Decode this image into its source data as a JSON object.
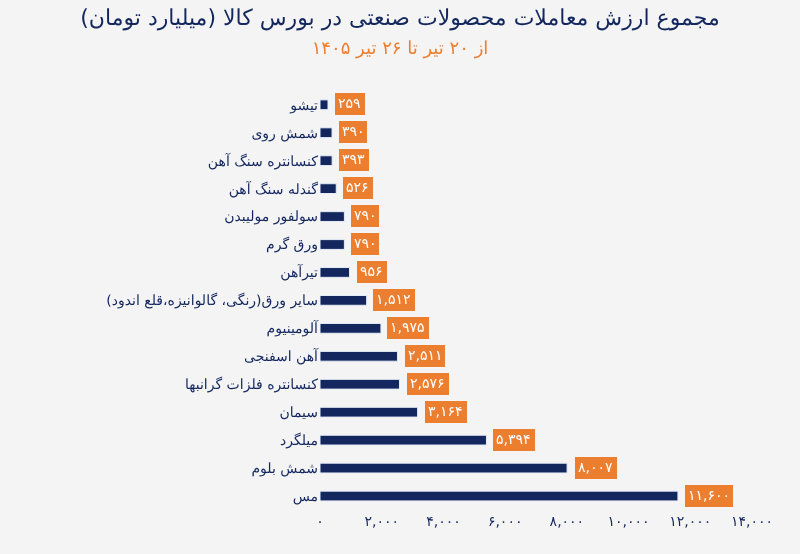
{
  "chart_data": {
    "type": "bar",
    "orientation": "horizontal",
    "title": "مجموع ارزش معاملات محصولات صنعتی در بورس کالا (میلیارد تومان)",
    "subtitle": "از ۲۰ تیر تا ۲۶ تیر ۱۴۰۵",
    "categories": [
      "تیشو",
      "شمش روی",
      "کنسانتره سنگ آهن",
      "گندله سنگ آهن",
      "سولفور مولیبدن",
      "ورق گرم",
      "تیرآهن",
      "سایر ورق(رنگی، گالوانیزه،قلع اندود)",
      "آلومینیوم",
      "آهن اسفنجی",
      "کنسانتره فلزات گرانبها",
      "سیمان",
      "میلگرد",
      "شمش بلوم",
      "مس"
    ],
    "values": [
      259,
      390,
      393,
      526,
      790,
      790,
      956,
      1512,
      1975,
      2511,
      2576,
      3164,
      5394,
      8007,
      11600
    ],
    "value_labels": [
      "۲۵۹",
      "۳۹۰",
      "۳۹۳",
      "۵۲۶",
      "۷۹۰",
      "۷۹۰",
      "۹۵۶",
      "۱,۵۱۲",
      "۱,۹۷۵",
      "۲,۵۱۱",
      "۲,۵۷۶",
      "۳,۱۶۴",
      "۵,۳۹۴",
      "۸,۰۰۷",
      "۱۱,۶۰۰"
    ],
    "color": "#13275e",
    "xlim": [
      0,
      14000
    ],
    "xticks": [
      {
        "value": 0,
        "label": "۰"
      },
      {
        "value": 2000,
        "label": "۲,۰۰۰"
      },
      {
        "value": 4000,
        "label": "۴,۰۰۰"
      },
      {
        "value": 6000,
        "label": "۶,۰۰۰"
      },
      {
        "value": 8000,
        "label": "۸,۰۰۰"
      },
      {
        "value": 10000,
        "label": "۱۰,۰۰۰"
      },
      {
        "value": 12000,
        "label": "۱۲,۰۰۰"
      },
      {
        "value": 14000,
        "label": "۱۴,۰۰۰"
      }
    ],
    "grid": false,
    "legend": false
  }
}
